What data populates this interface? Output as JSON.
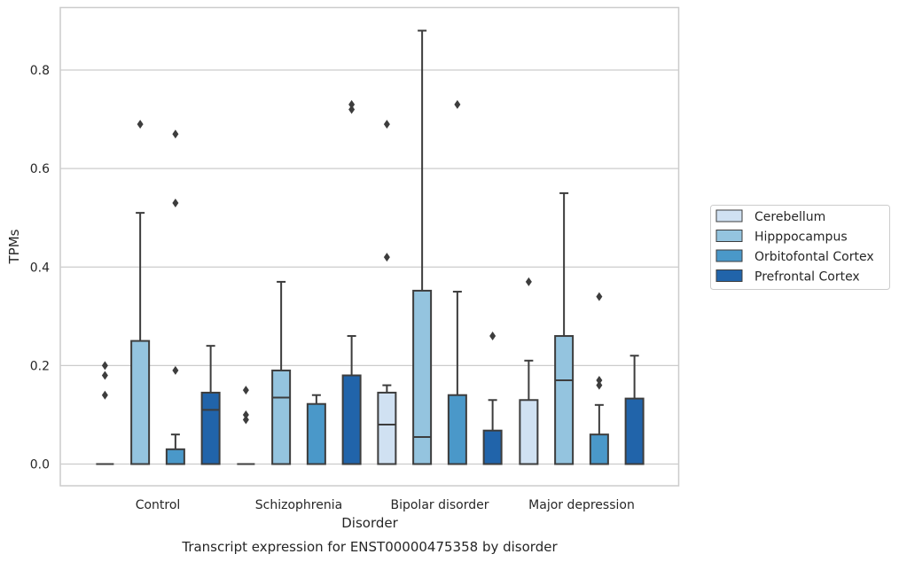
{
  "chart_data": {
    "type": "box",
    "caption": "Transcript expression for ENST00000475358 by disorder",
    "xlabel": "Disorder",
    "ylabel": "TPMs",
    "ylim": [
      -0.042,
      0.925
    ],
    "yticks": [
      "0.0",
      "0.2",
      "0.4",
      "0.6",
      "0.8"
    ],
    "ytick_values": [
      0,
      0.2,
      0.4,
      0.6,
      0.8
    ],
    "grid": true,
    "legend_position": "right",
    "categories": [
      "Control",
      "Schizophrenia",
      "Bipolar disorder",
      "Major depression"
    ],
    "series": [
      {
        "name": "Cerebellum",
        "color": "#d0e1f2",
        "boxes": [
          {
            "whislo": 0,
            "q1": 0,
            "med": 0,
            "q3": 0,
            "whishi": 0,
            "fliers": []
          },
          {
            "whislo": 0,
            "q1": 0,
            "med": 0,
            "q3": 0,
            "whishi": 0,
            "fliers": []
          },
          {
            "whislo": 0,
            "q1": 0,
            "med": 0.08,
            "q3": 0.145,
            "whishi": 0.16,
            "fliers": [
              0.42,
              0.69
            ]
          },
          {
            "whislo": 0,
            "q1": 0,
            "med": 0,
            "q3": 0.13,
            "whishi": 0.21,
            "fliers": [
              0.37
            ]
          }
        ]
      },
      {
        "name": "Hipppocampus",
        "color": "#94c4df",
        "boxes": [
          {
            "whislo": 0,
            "q1": 0,
            "med": 0,
            "q3": 0.25,
            "whishi": 0.51,
            "fliers": [
              0.69
            ]
          },
          {
            "whislo": 0,
            "q1": 0,
            "med": 0.135,
            "q3": 0.19,
            "whishi": 0.37,
            "fliers": []
          },
          {
            "whislo": 0,
            "q1": 0,
            "med": 0.055,
            "q3": 0.352,
            "whishi": 0.88,
            "fliers": []
          },
          {
            "whislo": 0,
            "q1": 0,
            "med": 0.17,
            "q3": 0.26,
            "whishi": 0.55,
            "fliers": []
          }
        ]
      },
      {
        "name": "Orbitofontal Cortex",
        "color": "#4a98c9",
        "boxes": [
          {
            "whislo": 0,
            "q1": 0,
            "med": 0,
            "q3": 0.03,
            "whishi": 0.06,
            "fliers": [
              0.19,
              0.53,
              0.67
            ]
          },
          {
            "whislo": 0,
            "q1": 0,
            "med": 0,
            "q3": 0.122,
            "whishi": 0.14,
            "fliers": []
          },
          {
            "whislo": 0,
            "q1": 0,
            "med": 0,
            "q3": 0.14,
            "whishi": 0.35,
            "fliers": [
              0.73
            ]
          },
          {
            "whislo": 0,
            "q1": 0,
            "med": 0,
            "q3": 0.06,
            "whishi": 0.12,
            "fliers": [
              0.16,
              0.17,
              0.34
            ]
          }
        ]
      },
      {
        "name": "Prefrontal Cortex",
        "color": "#2164aa",
        "boxes": [
          {
            "whislo": 0,
            "q1": 0,
            "med": 0.11,
            "q3": 0.145,
            "whishi": 0.24,
            "fliers": []
          },
          {
            "whislo": 0,
            "q1": 0,
            "med": 0,
            "q3": 0.18,
            "whishi": 0.26,
            "fliers": []
          },
          {
            "whislo": 0,
            "q1": 0,
            "med": 0,
            "q3": 0.068,
            "whishi": 0.13,
            "fliers": [
              0.26
            ]
          },
          {
            "whislo": 0,
            "q1": 0,
            "med": 0,
            "q3": 0.133,
            "whishi": 0.22,
            "fliers": []
          }
        ]
      }
    ],
    "extra_fliers": [
      {
        "category": 0,
        "series": 0,
        "values": [
          0.14,
          0.18,
          0.2
        ]
      },
      {
        "category": 1,
        "series": 0,
        "values": [
          0.09,
          0.1,
          0.15
        ]
      },
      {
        "category": 1,
        "series": 3,
        "values": [
          0.72,
          0.73
        ]
      }
    ]
  }
}
